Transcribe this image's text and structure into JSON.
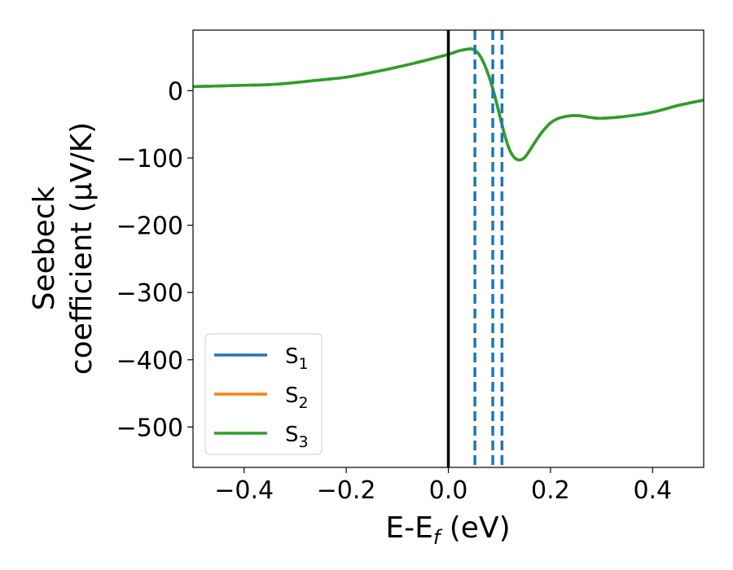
{
  "chart_data": {
    "type": "line",
    "title": "",
    "xlabel": "E-E_f (eV)",
    "xlabel_parts": {
      "main": "E-E",
      "sub": "f",
      "rest": " (eV)"
    },
    "ylabel_line1": "Seebeck",
    "ylabel_line2": "coefficient  (μV/K)",
    "xlim": [
      -0.5,
      0.5
    ],
    "ylim": [
      -560,
      90
    ],
    "xticks": [
      -0.4,
      -0.2,
      0.0,
      0.2,
      0.4
    ],
    "xtick_labels": [
      "−0.4",
      "−0.2",
      "0.0",
      "0.2",
      "0.4"
    ],
    "yticks": [
      0,
      -100,
      -200,
      -300,
      -400,
      -500
    ],
    "ytick_labels": [
      "0",
      "−100",
      "−200",
      "−300",
      "−400",
      "−500"
    ],
    "grid": false,
    "legend_position": "lower-left",
    "fermi_line": {
      "x": 0.0,
      "color": "#000000"
    },
    "vlines": [
      {
        "x": 0.052,
        "color": "#1f77b4",
        "style": "dashed"
      },
      {
        "x": 0.087,
        "color": "#1f77b4",
        "style": "dashed"
      },
      {
        "x": 0.105,
        "color": "#1f77b4",
        "style": "dashed"
      }
    ],
    "x": [
      -0.5,
      -0.45,
      -0.4,
      -0.35,
      -0.3,
      -0.25,
      -0.2,
      -0.15,
      -0.1,
      -0.05,
      0.0,
      0.02,
      0.04,
      0.05,
      0.06,
      0.07,
      0.08,
      0.09,
      0.1,
      0.11,
      0.12,
      0.13,
      0.14,
      0.15,
      0.16,
      0.18,
      0.2,
      0.22,
      0.25,
      0.28,
      0.3,
      0.35,
      0.4,
      0.45,
      0.5
    ],
    "series": [
      {
        "name": "S",
        "sub": "1",
        "color": "#1f77b4",
        "values": [
          6,
          7,
          8,
          9,
          12,
          16,
          20,
          27,
          35,
          44,
          54,
          59,
          62,
          61,
          54,
          40,
          20,
          -5,
          -35,
          -65,
          -88,
          -100,
          -103,
          -99,
          -88,
          -65,
          -48,
          -40,
          -37,
          -40,
          -41,
          -38,
          -32,
          -22,
          -14
        ]
      },
      {
        "name": "S",
        "sub": "2",
        "color": "#ff7f0e",
        "values": [
          6,
          7,
          8,
          9,
          12,
          16,
          20,
          27,
          35,
          44,
          54,
          59,
          62,
          61,
          54,
          40,
          20,
          -5,
          -35,
          -65,
          -88,
          -100,
          -103,
          -99,
          -88,
          -65,
          -48,
          -40,
          -37,
          -40,
          -41,
          -38,
          -32,
          -22,
          -14
        ]
      },
      {
        "name": "S",
        "sub": "3",
        "color": "#2ca02c",
        "values": [
          6,
          7,
          8,
          9,
          12,
          16,
          20,
          27,
          35,
          44,
          54,
          59,
          62,
          61,
          54,
          40,
          20,
          -5,
          -35,
          -65,
          -88,
          -100,
          -103,
          -99,
          -88,
          -65,
          -48,
          -40,
          -37,
          -40,
          -41,
          -38,
          -32,
          -22,
          -14
        ]
      }
    ]
  }
}
